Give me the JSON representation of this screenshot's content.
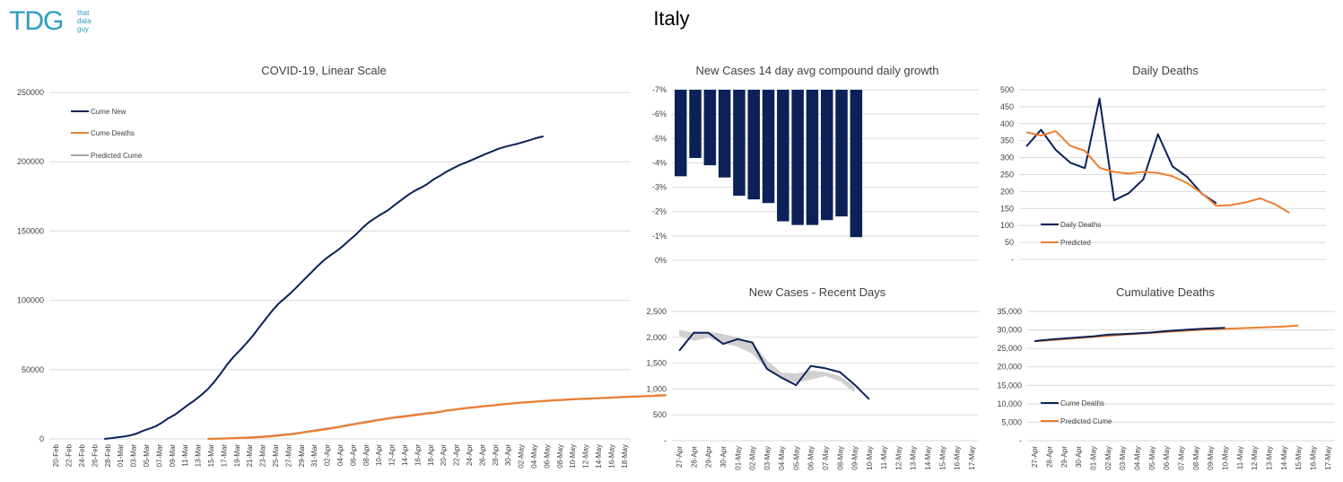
{
  "page": {
    "title": "Italy",
    "logo_main": "TDG",
    "logo_sub": [
      "that",
      "data",
      "guy"
    ]
  },
  "colors": {
    "navy": "#0b2158",
    "orange": "#ed7d31",
    "gray": "#a6a6a6",
    "grid": "#d9d9d9"
  },
  "chart_data": [
    {
      "id": "linear",
      "type": "line",
      "title": "COVID-19, Linear Scale",
      "yticks": [
        0,
        50000,
        100000,
        150000,
        200000,
        250000
      ],
      "yticklabels": [
        "0",
        "50000",
        "100000",
        "150000",
        "200000",
        "250000"
      ],
      "ylim": [
        0,
        250000
      ],
      "xticklabels": [
        "20-Feb",
        "22-Feb",
        "24-Feb",
        "26-Feb",
        "28-Feb",
        "01-Mar",
        "03-Mar",
        "05-Mar",
        "07-Mar",
        "09-Mar",
        "11-Mar",
        "13-Mar",
        "15-Mar",
        "17-Mar",
        "19-Mar",
        "21-Mar",
        "23-Mar",
        "25-Mar",
        "27-Mar",
        "29-Mar",
        "31-Mar",
        "02-Apr",
        "04-Apr",
        "06-Apr",
        "08-Apr",
        "10-Apr",
        "12-Apr",
        "14-Apr",
        "16-Apr",
        "18-Apr",
        "20-Apr",
        "22-Apr",
        "24-Apr",
        "26-Apr",
        "28-Apr",
        "30-Apr",
        "02-May",
        "04-May",
        "06-May",
        "08-May",
        "10-May",
        "12-May",
        "14-May",
        "16-May",
        "18-May"
      ],
      "legend": [
        "Cume New",
        "Cume Deaths",
        "Predicted Cume"
      ],
      "series": [
        {
          "name": "Cume New",
          "color": "#0b2158",
          "start": 8,
          "values": [
            0,
            500,
            1100,
            1700,
            2500,
            3800,
            5900,
            7400,
            9200,
            11900,
            15100,
            17700,
            21200,
            24700,
            27900,
            31600,
            35700,
            41000,
            47000,
            53500,
            59100,
            63900,
            69000,
            74400,
            80600,
            86500,
            92500,
            97700,
            101700,
            105800,
            110500,
            115200,
            119800,
            124600,
            128900,
            132500,
            135600,
            139400,
            143600,
            147600,
            152300,
            156400,
            159500,
            162500,
            165200,
            168900,
            172400,
            175900,
            178900,
            181200,
            183900,
            187300,
            189900,
            192900,
            195300,
            197700,
            199400,
            201500,
            203500,
            205500,
            207400,
            209300,
            210700,
            211900,
            213000,
            214400,
            215800,
            217200,
            218300
          ]
        },
        {
          "name": "Cume Deaths",
          "color": "#ed7d31",
          "start": 24,
          "values": [
            0,
            100,
            200,
            300,
            500,
            700,
            800,
            1000,
            1300,
            1600,
            2000,
            2500,
            3000,
            3400,
            4000,
            4800,
            5500,
            6100,
            6800,
            7500,
            8200,
            9100,
            10000,
            10800,
            11600,
            12400,
            13200,
            13900,
            14700,
            15400,
            15900,
            16500,
            17100,
            17700,
            18300,
            18800,
            19500,
            20500,
            21000,
            21600,
            22200,
            22700,
            23200,
            23700,
            24100,
            24600,
            25100,
            25500,
            26000,
            26400,
            26600,
            27000,
            27400,
            27700,
            28000,
            28200,
            28500,
            28700,
            28900,
            29100,
            29300,
            29600,
            29700,
            29900,
            30200,
            30400,
            30600,
            30700,
            30900,
            31100,
            31400,
            31600
          ]
        },
        {
          "name": "Predicted Cume",
          "color": "#a6a6a6",
          "start": 24,
          "values": [
            0,
            150,
            300,
            400,
            600,
            800,
            1000,
            1200,
            1500,
            1800,
            2200,
            2700,
            3200,
            3700,
            4300,
            5000,
            5700,
            6400,
            7100,
            7800,
            8500,
            9400,
            10300,
            11100,
            11900,
            12700,
            13500,
            14200,
            14900,
            15600,
            16200,
            16800,
            17400,
            18000,
            18500,
            19000,
            19700,
            20400,
            21000,
            21600,
            22200,
            22700,
            23200,
            23700,
            24100,
            24600,
            25100,
            25500,
            26000,
            26300,
            26600,
            27000,
            27300,
            27600,
            27900,
            28200,
            28500,
            28700,
            28900,
            29100,
            29300,
            29500,
            29700,
            29900,
            30100,
            30300,
            30500,
            30700,
            30900,
            31100,
            31300,
            31500
          ]
        }
      ]
    },
    {
      "id": "growth",
      "type": "bar",
      "title": "New Cases 14 day avg compound daily growth",
      "yticklabels": [
        "0%",
        "-1%",
        "-2%",
        "-3%",
        "-4%",
        "-5%",
        "-6%",
        "-7%"
      ],
      "ylim": [
        -7,
        0
      ],
      "values": [
        -3.55,
        -2.8,
        -3.1,
        -3.6,
        -4.35,
        -4.5,
        -4.65,
        -5.4,
        -5.55,
        -5.55,
        -5.35,
        -5.2,
        -6.05
      ],
      "color": "#0b2158"
    },
    {
      "id": "daily_deaths",
      "type": "line",
      "title": "Daily Deaths",
      "yticklabels": [
        "-",
        "50",
        "100",
        "150",
        "200",
        "250",
        "300",
        "350",
        "400",
        "450",
        "500"
      ],
      "ylim": [
        0,
        500
      ],
      "legend": [
        "Daily Deaths",
        "Predicted"
      ],
      "series": [
        {
          "name": "Daily Deaths",
          "color": "#0b2158",
          "values": [
            333,
            382,
            323,
            285,
            269,
            474,
            174,
            195,
            236,
            369,
            274,
            243,
            194,
            165
          ]
        },
        {
          "name": "Predicted",
          "color": "#ed7d31",
          "values": [
            375,
            365,
            378,
            335,
            320,
            270,
            258,
            253,
            258,
            255,
            245,
            225,
            195,
            158,
            160,
            168,
            180,
            163,
            137
          ]
        }
      ]
    },
    {
      "id": "recent_cases",
      "type": "line",
      "title": "New Cases - Recent Days",
      "yticklabels": [
        "-",
        "500",
        "1,000",
        "1,500",
        "2,000",
        "2,500"
      ],
      "ylim": [
        0,
        2500
      ],
      "xticklabels": [
        "27-Apr",
        "28-Apr",
        "29-Apr",
        "30-Apr",
        "01-May",
        "02-May",
        "03-May",
        "04-May",
        "05-May",
        "06-May",
        "07-May",
        "08-May",
        "09-May",
        "10-May",
        "11-May",
        "12-May",
        "13-May",
        "14-May",
        "15-May",
        "16-May",
        "17-May"
      ],
      "band_upper": [
        2150,
        2080,
        2110,
        2060,
        2000,
        1900,
        1550,
        1320,
        1300,
        1360,
        1330,
        1250,
        1050
      ],
      "band_lower": [
        2030,
        1930,
        1990,
        1880,
        1820,
        1680,
        1380,
        1200,
        1120,
        1180,
        1250,
        1150,
        930
      ],
      "series": [
        {
          "name": "",
          "color": "#0b2158",
          "values": [
            1739,
            2091,
            2086,
            1872,
            1965,
            1900,
            1389,
            1221,
            1075,
            1444,
            1401,
            1327,
            1083,
            802
          ]
        }
      ]
    },
    {
      "id": "cume_deaths",
      "type": "line",
      "title": "Cumulative Deaths",
      "yticklabels": [
        "-",
        "5,000",
        "10,000",
        "15,000",
        "20,000",
        "25,000",
        "30,000",
        "35,000"
      ],
      "ylim": [
        0,
        35000
      ],
      "xticklabels": [
        "27-Apr",
        "28-Apr",
        "29-Apr",
        "30-Apr",
        "01-May",
        "02-May",
        "03-May",
        "04-May",
        "05-May",
        "06-May",
        "07-May",
        "08-May",
        "09-May",
        "10-May",
        "11-May",
        "12-May",
        "13-May",
        "14-May",
        "15-May",
        "16-May",
        "17-May"
      ],
      "legend": [
        "Cume Deaths",
        "Predicted Cume"
      ],
      "series": [
        {
          "name": "Cume Deaths",
          "color": "#0b2158",
          "values": [
            26977,
            27359,
            27682,
            27967,
            28236,
            28710,
            28884,
            29079,
            29315,
            29684,
            29958,
            30201,
            30395,
            30560
          ]
        },
        {
          "name": "Predicted Cume",
          "color": "#ed7d31",
          "values": [
            26900,
            27200,
            27500,
            27800,
            28100,
            28400,
            28700,
            28950,
            29200,
            29450,
            29700,
            29950,
            30150,
            30300,
            30450,
            30600,
            30750,
            30900,
            31200
          ]
        }
      ]
    }
  ]
}
